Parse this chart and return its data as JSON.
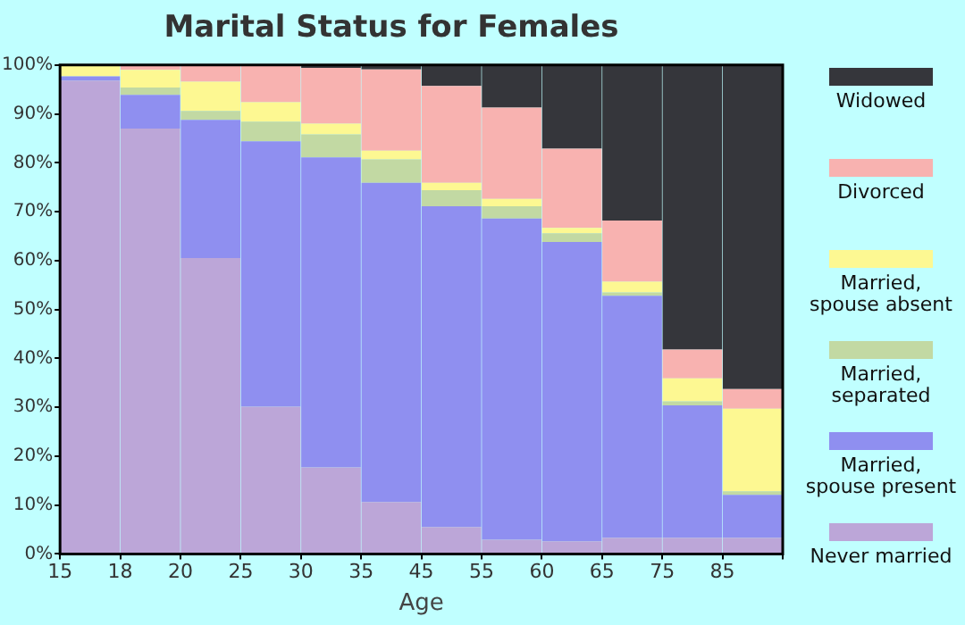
{
  "chart_data": {
    "type": "bar",
    "stacked": true,
    "title": "Marital Status for Females",
    "xlabel": "Age",
    "categories": [
      "15",
      "18",
      "20",
      "25",
      "30",
      "35",
      "45",
      "55",
      "60",
      "65",
      "75",
      "85"
    ],
    "ylim": [
      0,
      100
    ],
    "yticks": [
      {
        "value": 0,
        "label": "0%"
      },
      {
        "value": 10,
        "label": "10%"
      },
      {
        "value": 20,
        "label": "20%"
      },
      {
        "value": 30,
        "label": "30%"
      },
      {
        "value": 40,
        "label": "40%"
      },
      {
        "value": 50,
        "label": "50%"
      },
      {
        "value": 60,
        "label": "60%"
      },
      {
        "value": 70,
        "label": "70%"
      },
      {
        "value": 80,
        "label": "80%"
      },
      {
        "value": 90,
        "label": "90%"
      },
      {
        "value": 100,
        "label": "100%"
      }
    ],
    "legend": "right",
    "series": [
      {
        "name": "Never married",
        "color": "#bca6d8",
        "values": [
          96.8,
          87.0,
          60.5,
          30.1,
          17.7,
          10.6,
          5.5,
          2.9,
          2.6,
          3.3,
          3.3,
          3.3
        ]
      },
      {
        "name": "Married, spouse present",
        "color": "#8f8ff0",
        "values": [
          0.9,
          6.9,
          28.3,
          54.3,
          63.4,
          65.3,
          65.6,
          65.7,
          61.2,
          49.5,
          27.1,
          8.8
        ]
      },
      {
        "name": "Married, separated",
        "color": "#c2d9a3",
        "values": [
          0,
          1.5,
          1.8,
          4.0,
          4.7,
          4.8,
          3.3,
          2.5,
          1.8,
          0.7,
          0.8,
          0.7
        ]
      },
      {
        "name": "Married, spouse absent",
        "color": "#fdf892",
        "values": [
          2.3,
          3.6,
          6.0,
          4.0,
          2.2,
          1.8,
          1.5,
          1.5,
          1.1,
          2.2,
          4.7,
          16.9
        ]
      },
      {
        "name": "Divorced",
        "color": "#f8b2b0",
        "values": [
          0,
          1.0,
          3.4,
          7.6,
          11.4,
          16.6,
          19.8,
          18.7,
          16.2,
          12.5,
          5.9,
          4.0
        ]
      },
      {
        "name": "Widowed",
        "color": "#35363b",
        "values": [
          0,
          0,
          0,
          0,
          0.6,
          0.9,
          4.3,
          8.7,
          17.1,
          31.8,
          58.2,
          66.3
        ]
      }
    ]
  }
}
